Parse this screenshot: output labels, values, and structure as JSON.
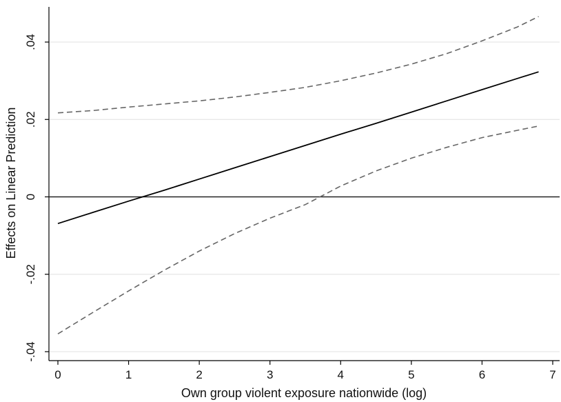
{
  "chart_data": {
    "type": "line",
    "title": "",
    "xlabel": "Own group violent exposure nationwide (log)",
    "ylabel": "Effects on Linear Prediction",
    "xlim": [
      0,
      7
    ],
    "ylim": [
      -0.04,
      0.04
    ],
    "x_ticks": [
      0,
      1,
      2,
      3,
      4,
      5,
      6,
      7
    ],
    "x_tick_labels": [
      "0",
      "1",
      "2",
      "3",
      "4",
      "5",
      "6",
      "7"
    ],
    "y_ticks": [
      -0.04,
      -0.02,
      0,
      0.02,
      0.04
    ],
    "y_tick_labels": [
      "-.04",
      "-.02",
      "0",
      ".02",
      ".04"
    ],
    "grid": true,
    "reference_line_y": 0,
    "x": [
      0,
      0.5,
      1,
      1.5,
      2,
      2.5,
      3,
      3.5,
      4,
      4.5,
      5,
      5.5,
      6,
      6.5,
      6.8
    ],
    "series": [
      {
        "role": "estimate",
        "style": "solid",
        "color": "#000000",
        "values": [
          -0.0069,
          -0.004,
          -0.0011,
          0.0017,
          0.0046,
          0.0075,
          0.0104,
          0.0133,
          0.0162,
          0.019,
          0.0219,
          0.0248,
          0.0277,
          0.0306,
          0.0323
        ]
      },
      {
        "role": "upper-ci",
        "style": "dashed",
        "color": "#666666",
        "values": [
          0.0217,
          0.0223,
          0.0232,
          0.024,
          0.0248,
          0.0258,
          0.027,
          0.0283,
          0.03,
          0.032,
          0.0343,
          0.037,
          0.0403,
          0.0439,
          0.0466
        ]
      },
      {
        "role": "lower-ci",
        "style": "dashed",
        "color": "#666666",
        "values": [
          -0.0354,
          -0.0298,
          -0.0243,
          -0.019,
          -0.014,
          -0.0095,
          -0.0055,
          -0.002,
          0.0028,
          0.0067,
          0.01,
          0.0128,
          0.0153,
          0.0172,
          0.0183
        ]
      }
    ]
  }
}
